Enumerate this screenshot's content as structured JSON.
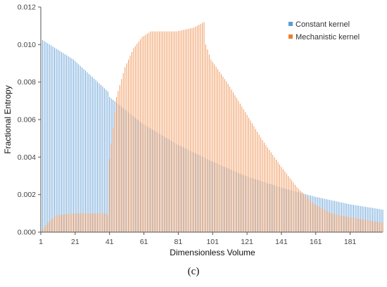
{
  "chart_data": {
    "type": "bar",
    "xlabel": "Dimensionless Volume",
    "ylabel": "Fractional Entropy",
    "x_tick_labels": [
      "1",
      "21",
      "41",
      "61",
      "81",
      "101",
      "121",
      "141",
      "161",
      "181"
    ],
    "x_ticks": [
      1,
      21,
      41,
      61,
      81,
      101,
      121,
      141,
      161,
      181
    ],
    "y_tick_labels": [
      "0.000",
      "0.002",
      "0.004",
      "0.006",
      "0.008",
      "0.010",
      "0.012"
    ],
    "xlim": [
      1,
      200
    ],
    "ylim": [
      0,
      0.012
    ],
    "grid": false,
    "legend_position": "top-right",
    "colors": {
      "constant": "#5b9bd5",
      "mechanistic": "#ed7d31",
      "axis": "#555555"
    },
    "series": [
      {
        "name": "Constant kernel",
        "color": "#5b9bd5",
        "points": [
          [
            1,
            0.0103
          ],
          [
            20,
            0.0092
          ],
          [
            40,
            0.0075
          ],
          [
            41,
            0.0072
          ],
          [
            60,
            0.0058
          ],
          [
            80,
            0.0047
          ],
          [
            100,
            0.0038
          ],
          [
            120,
            0.003
          ],
          [
            140,
            0.0024
          ],
          [
            160,
            0.0019
          ],
          [
            180,
            0.0015
          ],
          [
            200,
            0.0012
          ]
        ]
      },
      {
        "name": "Mechanistic kernel",
        "color": "#ed7d31",
        "points": [
          [
            1,
            0.0
          ],
          [
            5,
            0.0005
          ],
          [
            10,
            0.0009
          ],
          [
            20,
            0.001
          ],
          [
            39,
            0.001
          ],
          [
            40,
            0.0009
          ],
          [
            41,
            0.0039
          ],
          [
            45,
            0.0072
          ],
          [
            50,
            0.0088
          ],
          [
            55,
            0.0098
          ],
          [
            60,
            0.0104
          ],
          [
            65,
            0.0107
          ],
          [
            80,
            0.0107
          ],
          [
            90,
            0.0109
          ],
          [
            96,
            0.0112
          ],
          [
            97,
            0.01
          ],
          [
            100,
            0.0092
          ],
          [
            110,
            0.0079
          ],
          [
            120,
            0.0064
          ],
          [
            130,
            0.0049
          ],
          [
            140,
            0.0036
          ],
          [
            150,
            0.0024
          ],
          [
            160,
            0.0015
          ],
          [
            170,
            0.001
          ],
          [
            180,
            0.0008
          ],
          [
            200,
            0.0005
          ]
        ]
      }
    ]
  },
  "panel_label": "(c)"
}
